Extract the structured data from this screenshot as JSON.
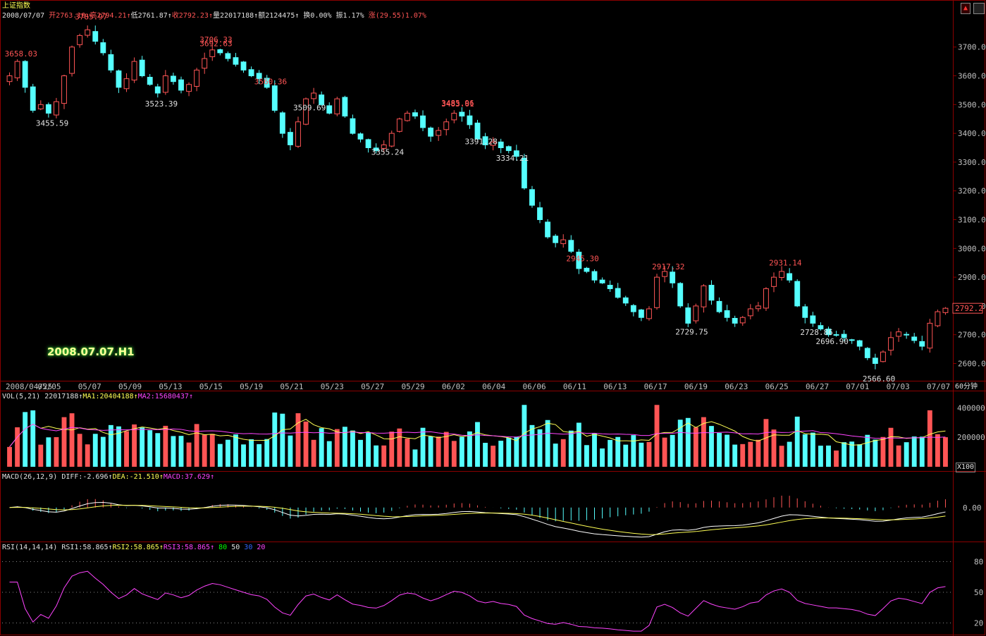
{
  "window": {
    "index_name": "上证指数"
  },
  "quote": {
    "date": "2008/07/07",
    "open": "开2763.10",
    "high": "高2794.21",
    "low": "低2761.87",
    "close": "收2792.23",
    "volume": "量22017188",
    "amount": "额2124475",
    "turnover": "换0.00%",
    "amplitude": "振1.17%",
    "change": "涨(29.55)1.07%"
  },
  "stamp": "2008.07.07.H1",
  "period": "60分钟",
  "current_price_tag": "2792.2",
  "price_axis": {
    "ticks": [
      2600,
      2700,
      2800,
      2900,
      3000,
      3100,
      3200,
      3300,
      3400,
      3500,
      3600,
      3700
    ],
    "min": 2540,
    "max": 3790
  },
  "date_labels": [
    "2008/04/25",
    "05/05",
    "05/07",
    "05/09",
    "05/13",
    "05/15",
    "05/19",
    "05/21",
    "05/23",
    "05/27",
    "05/29",
    "06/02",
    "06/04",
    "06/06",
    "06/11",
    "06/13",
    "06/17",
    "06/19",
    "06/23",
    "06/25",
    "06/27",
    "07/01",
    "07/03",
    "07/07"
  ],
  "vol_header": {
    "name": "VOL(5,21)",
    "vol": "22017188",
    "ma1": "MA1:20404188",
    "ma2": "MA2:15680437"
  },
  "vol_axis": {
    "ticks": [
      "400000",
      "200000"
    ],
    "unit": "X100"
  },
  "macd_header": {
    "name": "MACD(26,12,9)",
    "diff": "DIFF:-2.696",
    "dea": "DEA:-21.510",
    "macd": "MACD:37.629"
  },
  "macd_axis": {
    "ticks": [
      "0.00"
    ]
  },
  "rsi_header": {
    "name": "RSI(14,14,14)",
    "rsi1": "RSI1:58.865",
    "rsi2": "RSI2:58.865",
    "rsi3": "RSI3:58.865",
    "l80": "80",
    "l50": "50",
    "l30": "30",
    "l20": "20"
  },
  "rsi_axis": {
    "ticks": [
      "80",
      "50",
      "20"
    ]
  },
  "colors": {
    "up": "#ff5555",
    "down": "#55ffff",
    "ma1": "#ffff55",
    "ma2": "#ff44ff",
    "grid": "#8b0000",
    "axis_text": "#c0c0c0"
  },
  "chart_data": {
    "type": "candlestick",
    "title": "上证指数",
    "interval": "60分钟",
    "date_range": [
      "2008/04/25",
      "2008/07/07"
    ],
    "ylim": [
      2540,
      3790
    ],
    "annotated_extremes": [
      {
        "label": "3658.03",
        "price": 3658.03,
        "kind": "high"
      },
      {
        "label": "3455.59",
        "price": 3455.59,
        "kind": "low"
      },
      {
        "label": "3785.97",
        "price": 3785.97,
        "kind": "high"
      },
      {
        "label": "3692.63",
        "price": 3692.63,
        "kind": "high"
      },
      {
        "label": "3523.39",
        "price": 3523.39,
        "kind": "low"
      },
      {
        "label": "3509.69",
        "price": 3509.69,
        "kind": "low"
      },
      {
        "label": "3706.33",
        "price": 3706.33,
        "kind": "high"
      },
      {
        "label": "3560.36",
        "price": 3560.36,
        "kind": "high"
      },
      {
        "label": "3355.24",
        "price": 3355.24,
        "kind": "low"
      },
      {
        "label": "3485.96",
        "price": 3485.96,
        "kind": "high"
      },
      {
        "label": "3334.21",
        "price": 3334.21,
        "kind": "low"
      },
      {
        "label": "3483.61",
        "price": 3483.61,
        "kind": "high"
      },
      {
        "label": "3391.28",
        "price": 3391.28,
        "kind": "low"
      },
      {
        "label": "2945.30",
        "price": 2945.3,
        "kind": "high"
      },
      {
        "label": "2729.75",
        "price": 2729.75,
        "kind": "low"
      },
      {
        "label": "2917.32",
        "price": 2917.32,
        "kind": "high"
      },
      {
        "label": "2696.90",
        "price": 2696.9,
        "kind": "low"
      },
      {
        "label": "2728.86",
        "price": 2728.86,
        "kind": "low"
      },
      {
        "label": "2931.14",
        "price": 2931.14,
        "kind": "high"
      },
      {
        "label": "2566.60",
        "price": 2566.6,
        "kind": "low"
      }
    ],
    "close_path": [
      3600,
      3650,
      3560,
      3480,
      3500,
      3470,
      3510,
      3600,
      3700,
      3740,
      3760,
      3720,
      3680,
      3620,
      3560,
      3590,
      3650,
      3600,
      3570,
      3540,
      3600,
      3580,
      3550,
      3570,
      3620,
      3660,
      3690,
      3680,
      3660,
      3640,
      3620,
      3600,
      3590,
      3560,
      3480,
      3400,
      3360,
      3440,
      3520,
      3540,
      3500,
      3470,
      3520,
      3460,
      3400,
      3380,
      3350,
      3340,
      3360,
      3400,
      3450,
      3470,
      3460,
      3420,
      3390,
      3410,
      3440,
      3470,
      3460,
      3430,
      3380,
      3360,
      3370,
      3350,
      3340,
      3320,
      3210,
      3150,
      3100,
      3040,
      3020,
      3030,
      2990,
      2930,
      2920,
      2890,
      2880,
      2860,
      2830,
      2810,
      2780,
      2760,
      2790,
      2900,
      2920,
      2880,
      2800,
      2740,
      2800,
      2870,
      2820,
      2780,
      2760,
      2740,
      2760,
      2790,
      2800,
      2860,
      2900,
      2920,
      2890,
      2800,
      2760,
      2740,
      2720,
      2700,
      2700,
      2690,
      2680,
      2660,
      2620,
      2600,
      2640,
      2690,
      2710,
      2700,
      2680,
      2660,
      2740,
      2780,
      2792
    ]
  }
}
